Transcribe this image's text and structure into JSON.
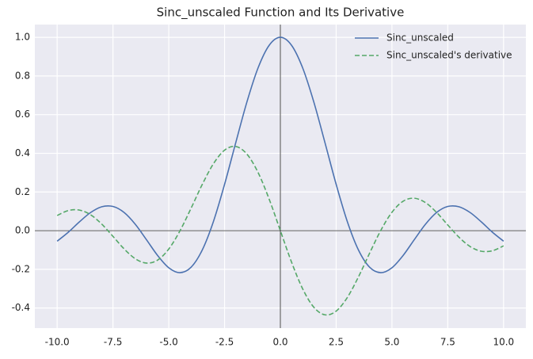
{
  "chart_data": {
    "type": "line",
    "title": "Sinc_unscaled Function and Its Derivative",
    "x": [
      -10,
      -9.5,
      -9,
      -8.5,
      -8,
      -7.5,
      -7,
      -6.5,
      -6,
      -5.5,
      -5,
      -4.5,
      -4,
      -3.5,
      -3,
      -2.5,
      -2,
      -1.5,
      -1,
      -0.5,
      0,
      0.5,
      1,
      1.5,
      2,
      2.5,
      3,
      3.5,
      4,
      4.5,
      5,
      5.5,
      6,
      6.5,
      7,
      7.5,
      8,
      8.5,
      9,
      9.5,
      10
    ],
    "series": [
      {
        "name": "Sinc_unscaled",
        "color": "#4c72b0",
        "dash": false,
        "values": [
          -0.0544,
          -0.0079,
          0.0458,
          0.0939,
          0.1237,
          0.1251,
          0.0939,
          0.0331,
          -0.0466,
          -0.1283,
          -0.1918,
          -0.2172,
          -0.1892,
          -0.1002,
          0.047,
          0.2394,
          0.4546,
          0.665,
          0.8415,
          0.9589,
          1,
          0.9589,
          0.8415,
          0.665,
          0.4546,
          0.2394,
          0.047,
          -0.1002,
          -0.1892,
          -0.2172,
          -0.1918,
          -0.1283,
          -0.0466,
          0.0331,
          0.0939,
          0.1251,
          0.1237,
          0.0939,
          0.0458,
          -0.0079,
          -0.0544
        ]
      },
      {
        "name": "Sinc_unscaled's derivative",
        "color": "#55a868",
        "dash": true,
        "values": [
          0.0785,
          0.1041,
          0.1063,
          0.0819,
          0.0336,
          -0.0295,
          -0.0943,
          -0.1452,
          -0.1678,
          -0.1522,
          -0.0951,
          -0.0014,
          0.1161,
          0.2389,
          0.3457,
          0.4162,
          0.4354,
          0.3962,
          0.3012,
          0.1625,
          0,
          -0.1625,
          -0.3012,
          -0.3962,
          -0.4354,
          -0.4162,
          -0.3457,
          -0.2389,
          -0.1161,
          0.0014,
          0.0951,
          0.1522,
          0.1678,
          0.1452,
          0.0943,
          0.0295,
          -0.0336,
          -0.0819,
          -0.1063,
          -0.1041,
          -0.0785
        ]
      }
    ],
    "xlim": [
      -11,
      11
    ],
    "ylim": [
      -0.504,
      1.066
    ],
    "xticks": [
      {
        "value": -10,
        "label": "-10.0"
      },
      {
        "value": -7.5,
        "label": "-7.5"
      },
      {
        "value": -5,
        "label": "-5.0"
      },
      {
        "value": -2.5,
        "label": "-2.5"
      },
      {
        "value": 0,
        "label": "0.0"
      },
      {
        "value": 2.5,
        "label": "2.5"
      },
      {
        "value": 5,
        "label": "5.0"
      },
      {
        "value": 7.5,
        "label": "7.5"
      },
      {
        "value": 10,
        "label": "10.0"
      }
    ],
    "yticks": [
      -0.4,
      -0.2,
      {
        "value": 0,
        "label": "0.0"
      },
      0.2,
      0.4,
      0.6,
      0.8,
      {
        "value": 1,
        "label": "1.0"
      }
    ],
    "grid": true,
    "legend": "upper right"
  }
}
